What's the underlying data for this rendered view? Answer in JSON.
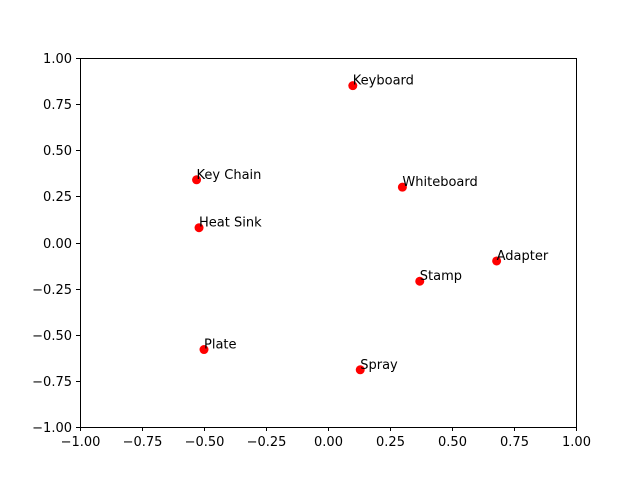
{
  "chart_data": {
    "type": "scatter",
    "title": "",
    "xlabel": "",
    "ylabel": "",
    "xlim": [
      -1.0,
      1.0
    ],
    "ylim": [
      -1.0,
      1.0
    ],
    "x_ticks": [
      "−1.00",
      "−0.75",
      "−0.50",
      "−0.25",
      "0.00",
      "0.25",
      "0.50",
      "0.75",
      "1.00"
    ],
    "y_ticks": [
      "−1.00",
      "−0.75",
      "−0.50",
      "−0.25",
      "0.00",
      "0.25",
      "0.50",
      "0.75",
      "1.00"
    ],
    "grid": false,
    "marker_color": "#ff0000",
    "points": [
      {
        "label": "Keyboard",
        "x": 0.1,
        "y": 0.85
      },
      {
        "label": "Key Chain",
        "x": -0.53,
        "y": 0.34
      },
      {
        "label": "Whiteboard",
        "x": 0.3,
        "y": 0.3
      },
      {
        "label": "Heat Sink",
        "x": -0.52,
        "y": 0.08
      },
      {
        "label": "Adapter",
        "x": 0.68,
        "y": -0.1
      },
      {
        "label": "Stamp",
        "x": 0.37,
        "y": -0.21
      },
      {
        "label": "Plate",
        "x": -0.5,
        "y": -0.58
      },
      {
        "label": "Spray",
        "x": 0.13,
        "y": -0.69
      }
    ]
  }
}
